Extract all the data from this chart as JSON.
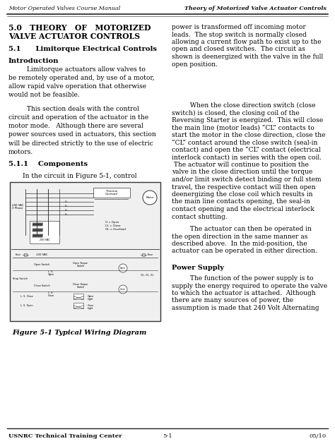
{
  "header_left": "Motor Operated Valves Course Manual",
  "header_right": "Theory of Motorized Valve Actuator Controls",
  "footer_left": "USNRC Technical Training Center",
  "footer_center": "5-1",
  "footer_right": "05/10",
  "bg_color": "#ffffff",
  "text_color": "#000000"
}
